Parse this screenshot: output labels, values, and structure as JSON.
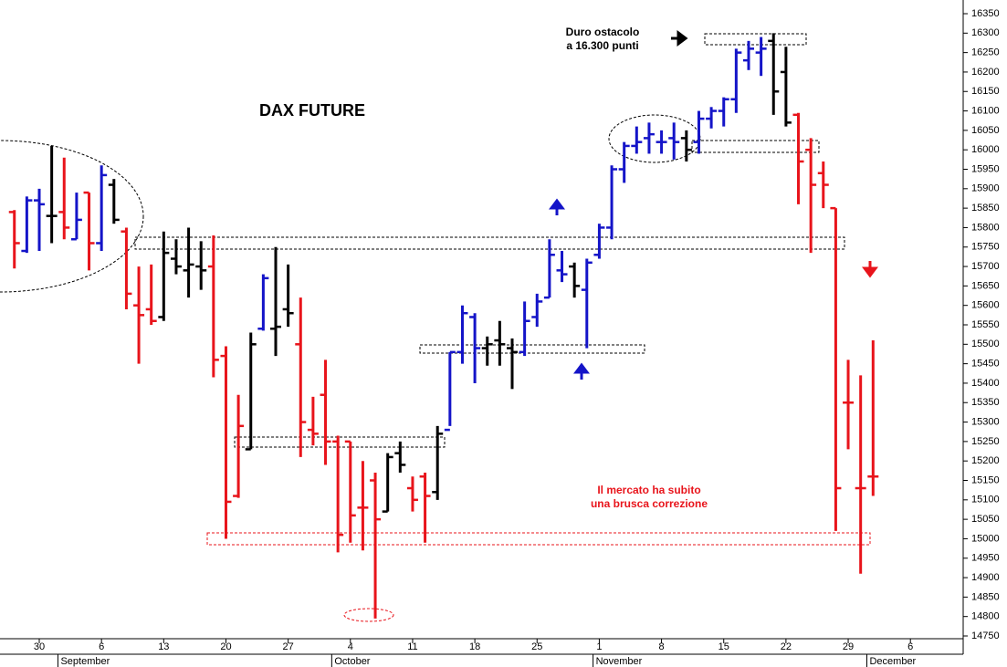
{
  "chart_data": {
    "type": "ohlc",
    "title": "DAX FUTURE",
    "annotations": [
      "Duro ostacolo",
      "a 16.300 punti",
      "Il mercato ha subito",
      "una brusca correzione"
    ],
    "x": [
      -2,
      -1,
      0,
      1,
      2,
      3,
      4,
      5,
      6,
      7,
      8,
      9,
      10,
      11,
      12,
      13,
      14,
      15,
      16,
      17,
      18,
      19,
      20,
      21,
      22,
      23,
      24,
      25,
      26,
      27,
      28,
      29,
      30,
      31,
      32,
      33,
      34,
      35,
      36,
      37,
      38,
      39,
      40,
      41,
      42,
      43,
      44,
      45,
      46,
      47,
      48,
      49,
      50,
      51,
      52,
      53,
      54,
      55,
      56,
      57,
      58,
      59,
      60,
      61,
      62,
      63,
      64,
      65,
      66,
      67
    ],
    "open": [
      15840,
      15740,
      15870,
      15830,
      15840,
      15770,
      15890,
      15760,
      15910,
      15790,
      15600,
      15590,
      15570,
      15720,
      15690,
      15700,
      15700,
      15470,
      15110,
      15230,
      15540,
      15540,
      15590,
      15500,
      15280,
      15370,
      15250,
      15250,
      15080,
      15150,
      15070,
      15220,
      15130,
      15160,
      15120,
      15280,
      15480,
      15570,
      15490,
      15510,
      15490,
      15480,
      15570,
      15620,
      15690,
      15700,
      15640,
      15730,
      15800,
      15950,
      16010,
      16030,
      16020,
      16030,
      16030,
      16020,
      16080,
      16100,
      16130,
      16230,
      16250,
      16280,
      16200,
      16090,
      16000,
      15940,
      15850,
      15350,
      15130,
      15160
    ],
    "high": [
      15845,
      15880,
      15900,
      16010,
      15980,
      15890,
      15890,
      15960,
      15925,
      15800,
      15700,
      15705,
      15790,
      15770,
      15800,
      15765,
      15780,
      15495,
      15370,
      15530,
      15680,
      15750,
      15705,
      15620,
      15365,
      15460,
      15265,
      15250,
      15200,
      15170,
      15220,
      15250,
      15160,
      15170,
      15290,
      15480,
      15600,
      15580,
      15520,
      15560,
      15515,
      15610,
      15630,
      15770,
      15740,
      15710,
      15720,
      15810,
      15960,
      16020,
      16060,
      16070,
      16050,
      16070,
      16050,
      16100,
      16110,
      16135,
      16260,
      16280,
      16290,
      16300,
      16265,
      16095,
      16030,
      15970,
      15850,
      15460,
      15420,
      15510
    ],
    "low": [
      15695,
      15735,
      15740,
      15760,
      15770,
      15770,
      15690,
      15740,
      15810,
      15590,
      15450,
      15550,
      15560,
      15680,
      15620,
      15640,
      15415,
      15000,
      15105,
      15230,
      15535,
      15470,
      15545,
      15210,
      15240,
      15190,
      14965,
      14990,
      14970,
      14795,
      15070,
      15170,
      15070,
      14990,
      15100,
      15290,
      15450,
      15400,
      15445,
      15445,
      15385,
      15470,
      15545,
      15620,
      15660,
      15620,
      15490,
      15720,
      15770,
      15915,
      15990,
      15990,
      15990,
      15975,
      15970,
      15990,
      16055,
      16060,
      16095,
      16205,
      16190,
      16090,
      16060,
      15860,
      15735,
      15850,
      15020,
      15230,
      14910,
      15110
    ],
    "close": [
      15760,
      15870,
      15860,
      15830,
      15800,
      15820,
      15760,
      15935,
      15820,
      15630,
      15575,
      15560,
      15735,
      15700,
      15705,
      15690,
      15460,
      15095,
      15290,
      15500,
      15670,
      15545,
      15580,
      15300,
      15270,
      15250,
      15010,
      15060,
      15080,
      15050,
      15210,
      15190,
      15100,
      15110,
      15270,
      15480,
      15580,
      15490,
      15500,
      15500,
      15480,
      15560,
      15610,
      15730,
      15680,
      15650,
      15710,
      15800,
      15950,
      16010,
      16020,
      16040,
      16020,
      16020,
      16000,
      16080,
      16100,
      16130,
      16250,
      16260,
      16260,
      16150,
      16070,
      15970,
      15910,
      15910,
      15130,
      15350,
      15130,
      15160
    ],
    "bar_colors": [
      "#e8141b",
      "#1414c8",
      "#1414c8",
      "#000000",
      "#e8141b",
      "#1414c8",
      "#e8141b",
      "#1414c8",
      "#000000",
      "#e8141b",
      "#e8141b",
      "#e8141b",
      "#000000",
      "#000000",
      "#000000",
      "#000000",
      "#e8141b",
      "#e8141b",
      "#e8141b",
      "#000000",
      "#1414c8",
      "#000000",
      "#000000",
      "#e8141b",
      "#e8141b",
      "#e8141b",
      "#e8141b",
      "#e8141b",
      "#e8141b",
      "#e8141b",
      "#000000",
      "#000000",
      "#e8141b",
      "#e8141b",
      "#000000",
      "#1414c8",
      "#1414c8",
      "#1414c8",
      "#000000",
      "#000000",
      "#000000",
      "#1414c8",
      "#1414c8",
      "#1414c8",
      "#1414c8",
      "#000000",
      "#1414c8",
      "#1414c8",
      "#1414c8",
      "#1414c8",
      "#1414c8",
      "#1414c8",
      "#1414c8",
      "#1414c8",
      "#000000",
      "#1414c8",
      "#1414c8",
      "#1414c8",
      "#1414c8",
      "#1414c8",
      "#1414c8",
      "#000000",
      "#000000",
      "#e8141b",
      "#e8141b",
      "#e8141b",
      "#e8141b",
      "#e8141b",
      "#e8141b",
      "#e8141b"
    ],
    "xlim": [
      -3.155,
      74.24
    ],
    "xticks": [
      {
        "value": 0,
        "label": "30"
      },
      {
        "value": 5,
        "label": "6"
      },
      {
        "value": 10,
        "label": "13"
      },
      {
        "value": 15,
        "label": "20"
      },
      {
        "value": 20,
        "label": "27"
      },
      {
        "value": 25,
        "label": "4"
      },
      {
        "value": 30,
        "label": "11"
      },
      {
        "value": 35,
        "label": "18"
      },
      {
        "value": 40,
        "label": "25"
      },
      {
        "value": 45,
        "label": "1"
      },
      {
        "value": 50,
        "label": "8"
      },
      {
        "value": 55,
        "label": "15"
      },
      {
        "value": 60,
        "label": "22"
      },
      {
        "value": 65,
        "label": "29"
      },
      {
        "value": 70,
        "label": "6"
      }
    ],
    "month_labels": [
      {
        "value": 1.5,
        "label": "September"
      },
      {
        "value": 23.5,
        "label": "October"
      },
      {
        "value": 44.5,
        "label": "November"
      },
      {
        "value": 66.5,
        "label": "December"
      }
    ],
    "ylim": [
      14750,
      16350
    ],
    "yticks": [
      14750,
      14800,
      14850,
      14900,
      14950,
      15000,
      15050,
      15100,
      15150,
      15200,
      15250,
      15300,
      15350,
      15400,
      15450,
      15500,
      15550,
      15600,
      15650,
      15700,
      15750,
      15800,
      15850,
      15900,
      15950,
      16000,
      16050,
      16100,
      16150,
      16200,
      16250,
      16300,
      16350
    ],
    "grid": false
  }
}
